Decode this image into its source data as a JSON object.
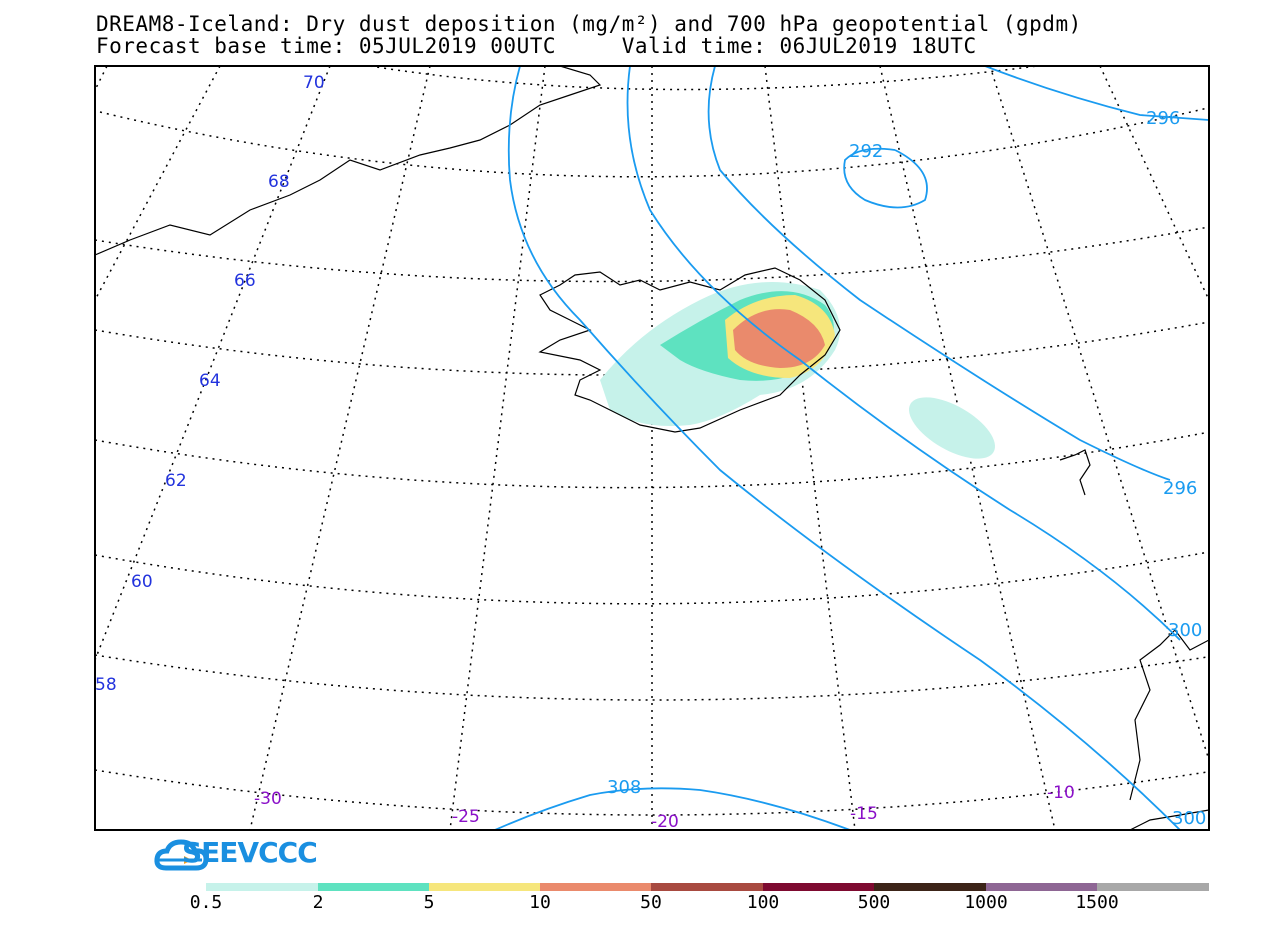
{
  "title": {
    "line1": "DREAM8-Iceland: Dry dust deposition (mg/m²) and 700 hPa geopotential (gpdm)",
    "line2": "Forecast base time: 05JUL2019 00UTC     Valid time: 06JUL2019 18UTC"
  },
  "latitude_labels": [
    "70",
    "68",
    "66",
    "64",
    "62",
    "60",
    "58"
  ],
  "longitude_labels": [
    "-30",
    "-25",
    "-20",
    "-15",
    "-10"
  ],
  "contour_labels": [
    "292",
    "296",
    "296",
    "300",
    "308",
    "300"
  ],
  "colors": {
    "contour": "#1a9bf0",
    "lat_label": "#2233dd",
    "lon_label": "#8a10c8"
  },
  "logo": {
    "text": "SEEVCCC"
  },
  "colorbar": {
    "labels": [
      "0.5",
      "2",
      "5",
      "10",
      "50",
      "100",
      "500",
      "1000",
      "1500"
    ],
    "colors": [
      "#c6f2ea",
      "#5ee2c0",
      "#f6e67c",
      "#ea8a6c",
      "#a84a40",
      "#7e0a30",
      "#3c2418",
      "#8e6694",
      "#a8a8a8"
    ]
  }
}
